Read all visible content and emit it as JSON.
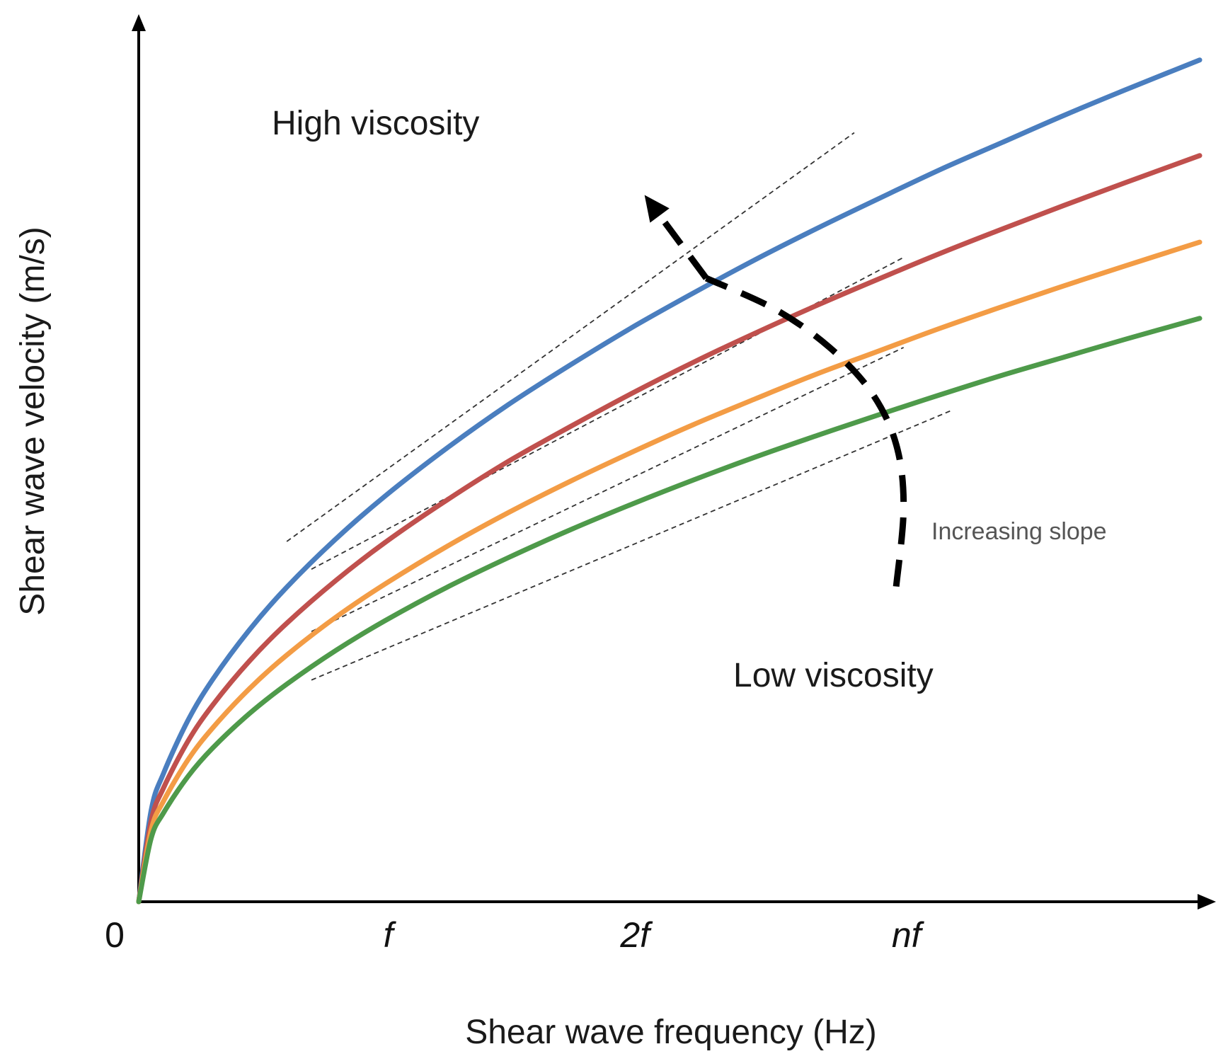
{
  "chart_data": {
    "type": "line",
    "title": "",
    "xlabel": "Shear wave frequency (Hz)",
    "ylabel": "Shear wave velocity (m/s)",
    "origin_label": "0",
    "x_ticks": [
      {
        "label": "f",
        "value": 1
      },
      {
        "label": "2f",
        "value": 2
      },
      {
        "label": "nf",
        "value": 3.1
      }
    ],
    "xlim": [
      0,
      4.3
    ],
    "ylim": [
      0,
      12.3
    ],
    "grid": false,
    "legend": "none",
    "series": [
      {
        "name": "blue",
        "color": "#4a7ebf",
        "x": [
          0,
          0.05,
          0.1,
          0.2,
          0.3,
          0.45,
          0.6,
          0.8,
          1.0,
          1.25,
          1.5,
          1.75,
          2.0,
          2.25,
          2.5,
          2.75,
          3.0,
          3.25,
          3.5,
          3.75,
          4.0,
          4.3
        ],
        "values": [
          0,
          1.31,
          1.85,
          2.62,
          3.21,
          3.93,
          4.54,
          5.24,
          5.86,
          6.55,
          7.18,
          7.75,
          8.29,
          8.79,
          9.27,
          9.72,
          10.15,
          10.57,
          10.96,
          11.35,
          11.72,
          12.15
        ]
      },
      {
        "name": "red",
        "color": "#c0504d",
        "x": [
          0,
          0.05,
          0.1,
          0.2,
          0.3,
          0.45,
          0.6,
          0.8,
          1.0,
          1.25,
          1.5,
          1.75,
          2.0,
          2.25,
          2.5,
          2.75,
          3.0,
          3.25,
          3.5,
          3.75,
          4.0,
          4.3
        ],
        "values": [
          0,
          1.16,
          1.64,
          2.32,
          2.84,
          3.48,
          4.02,
          4.64,
          5.19,
          5.8,
          6.36,
          6.86,
          7.34,
          7.79,
          8.21,
          8.61,
          8.99,
          9.36,
          9.71,
          10.05,
          10.38,
          10.77
        ]
      },
      {
        "name": "orange",
        "color": "#f39c45",
        "x": [
          0,
          0.05,
          0.1,
          0.2,
          0.3,
          0.45,
          0.6,
          0.8,
          1.0,
          1.25,
          1.5,
          1.75,
          2.0,
          2.25,
          2.5,
          2.75,
          3.0,
          3.25,
          3.5,
          3.75,
          4.0,
          4.3
        ],
        "values": [
          0,
          1.03,
          1.45,
          2.05,
          2.51,
          3.08,
          3.56,
          4.11,
          4.59,
          5.13,
          5.62,
          6.07,
          6.49,
          6.89,
          7.26,
          7.62,
          7.95,
          8.28,
          8.59,
          8.89,
          9.18,
          9.52
        ]
      },
      {
        "name": "green",
        "color": "#4e9a4a",
        "x": [
          0,
          0.05,
          0.1,
          0.2,
          0.3,
          0.45,
          0.6,
          0.8,
          1.0,
          1.25,
          1.5,
          1.75,
          2.0,
          2.25,
          2.5,
          2.75,
          3.0,
          3.25,
          3.5,
          3.75,
          4.0,
          4.3
        ],
        "values": [
          0,
          0.91,
          1.28,
          1.81,
          2.22,
          2.72,
          3.14,
          3.63,
          4.06,
          4.54,
          4.97,
          5.37,
          5.74,
          6.09,
          6.42,
          6.73,
          7.03,
          7.32,
          7.6,
          7.86,
          8.12,
          8.42
        ]
      }
    ],
    "tangent_lines": [
      {
        "series": "blue",
        "x": [
          0.6,
          2.9
        ],
        "values": [
          5.2,
          11.1
        ]
      },
      {
        "series": "red",
        "x": [
          0.7,
          3.1
        ],
        "values": [
          4.8,
          9.3
        ]
      },
      {
        "series": "orange",
        "x": [
          0.7,
          3.1
        ],
        "values": [
          3.9,
          8.0
        ]
      },
      {
        "series": "green",
        "x": [
          0.7,
          3.3
        ],
        "values": [
          3.2,
          7.1
        ]
      }
    ],
    "annotations": {
      "high_label": "High viscosity",
      "low_label": "Low viscosity",
      "slope_label": "Increasing slope"
    },
    "trend_arrow": {
      "x": [
        3.07,
        3.1,
        3.07,
        2.97,
        2.8,
        2.58,
        2.3,
        2.05
      ],
      "values": [
        4.55,
        5.7,
        6.6,
        7.35,
        8.0,
        8.55,
        9.0,
        10.2
      ]
    }
  }
}
